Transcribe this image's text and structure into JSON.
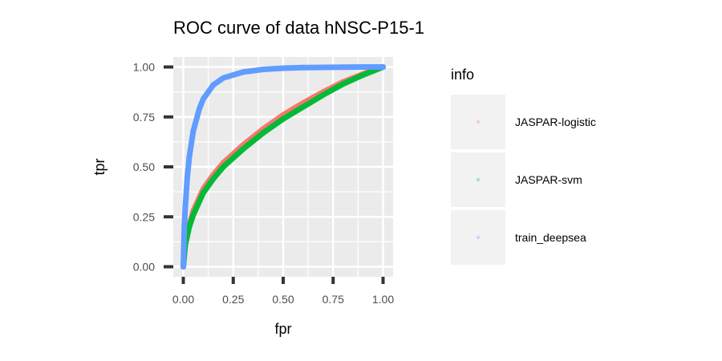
{
  "chart_data": {
    "type": "line",
    "title": "ROC curve of data hNSC-P15-1",
    "xlabel": "fpr",
    "ylabel": "tpr",
    "xlim": [
      0,
      1
    ],
    "ylim": [
      0,
      1
    ],
    "x_ticks": [
      "0.00",
      "0.25",
      "0.50",
      "0.75",
      "1.00"
    ],
    "y_ticks": [
      "0.00",
      "0.25",
      "0.50",
      "0.75",
      "1.00"
    ],
    "grid": true,
    "legend": {
      "title": "info",
      "position": "right",
      "entries": [
        "JASPAR-logistic",
        "JASPAR-svm",
        "train_deepsea"
      ]
    },
    "series": [
      {
        "name": "JASPAR-logistic",
        "color": "#F8766D",
        "x": [
          0,
          0.01,
          0.03,
          0.05,
          0.1,
          0.15,
          0.2,
          0.3,
          0.4,
          0.5,
          0.6,
          0.7,
          0.8,
          0.9,
          1.0
        ],
        "y": [
          0,
          0.12,
          0.21,
          0.28,
          0.39,
          0.46,
          0.52,
          0.61,
          0.69,
          0.76,
          0.82,
          0.875,
          0.925,
          0.965,
          1.0
        ]
      },
      {
        "name": "JASPAR-svm",
        "color": "#00BA38",
        "x": [
          0,
          0.01,
          0.03,
          0.05,
          0.1,
          0.15,
          0.2,
          0.3,
          0.4,
          0.5,
          0.6,
          0.7,
          0.8,
          0.9,
          1.0
        ],
        "y": [
          0,
          0.11,
          0.2,
          0.26,
          0.37,
          0.44,
          0.5,
          0.59,
          0.67,
          0.74,
          0.8,
          0.86,
          0.915,
          0.96,
          1.0
        ]
      },
      {
        "name": "train_deepsea",
        "color": "#619CFF",
        "x": [
          0,
          0.005,
          0.01,
          0.02,
          0.03,
          0.05,
          0.08,
          0.1,
          0.15,
          0.2,
          0.3,
          0.4,
          0.5,
          0.6,
          0.7,
          0.8,
          0.9,
          1.0
        ],
        "y": [
          0,
          0.2,
          0.3,
          0.45,
          0.55,
          0.68,
          0.79,
          0.84,
          0.91,
          0.945,
          0.975,
          0.988,
          0.994,
          0.997,
          0.998,
          0.999,
          1.0,
          1.0
        ]
      }
    ]
  }
}
